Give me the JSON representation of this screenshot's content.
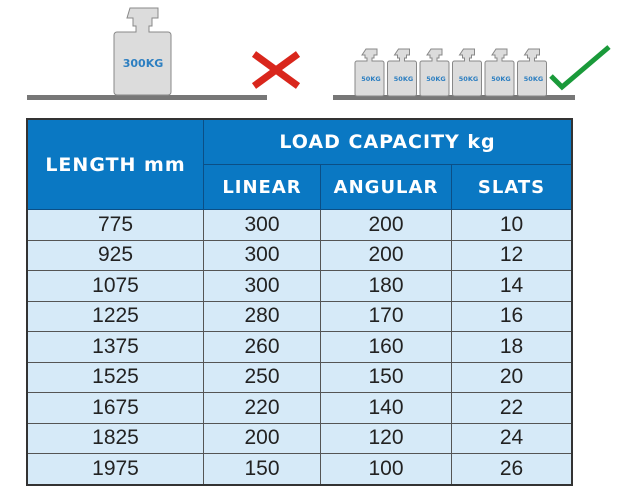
{
  "illustration": {
    "wrong": {
      "weight_label": "300KG",
      "icon": "cross-icon",
      "color": "#d9261c"
    },
    "right": {
      "weight_labels": [
        "50KG",
        "50KG",
        "50KG",
        "50KG",
        "50KG",
        "50KG"
      ],
      "icon": "check-icon",
      "color": "#1a9a3a"
    }
  },
  "table": {
    "header_length": "LENGTH mm",
    "header_load": "LOAD CAPACITY kg",
    "sub_headers": [
      "LINEAR",
      "ANGULAR",
      "SLATS"
    ],
    "header_color": "#0a78c3",
    "row_color": "#d6eaf8",
    "rows": [
      [
        "775",
        "300",
        "200",
        "10"
      ],
      [
        "925",
        "300",
        "200",
        "12"
      ],
      [
        "1075",
        "300",
        "180",
        "14"
      ],
      [
        "1225",
        "280",
        "170",
        "16"
      ],
      [
        "1375",
        "260",
        "160",
        "18"
      ],
      [
        "1525",
        "250",
        "150",
        "20"
      ],
      [
        "1675",
        "220",
        "140",
        "22"
      ],
      [
        "1825",
        "200",
        "120",
        "24"
      ],
      [
        "1975",
        "150",
        "100",
        "26"
      ]
    ]
  }
}
